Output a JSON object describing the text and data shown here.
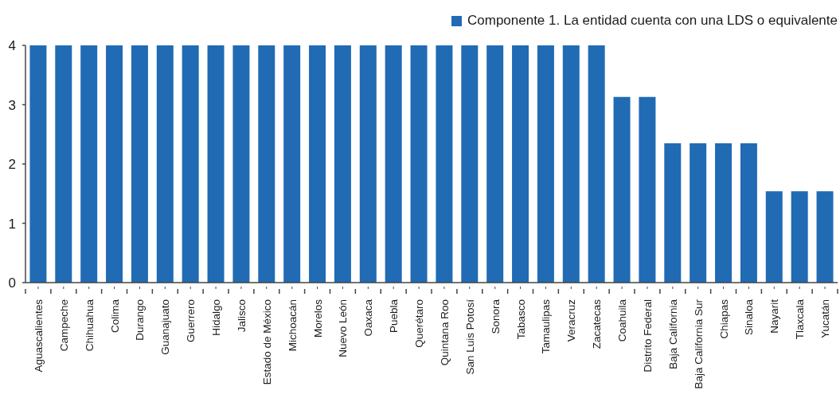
{
  "chart_data": {
    "type": "bar",
    "categories": [
      "Aguascalientes",
      "Campeche",
      "Chihuahua",
      "Colima",
      "Durango",
      "Guanajuato",
      "Guerrero",
      "Hidalgo",
      "Jalisco",
      "Estado de México",
      "Michoacán",
      "Morelos",
      "Nuevo León",
      "Oaxaca",
      "Puebla",
      "Querétaro",
      "Quintana Roo",
      "San Luis Potosí",
      "Sonora",
      "Tabasco",
      "Tamaulipas",
      "Veracruz",
      "Zacatecas",
      "Coahuila",
      "Distrito Federal",
      "Baja California",
      "Baja California Sur",
      "Chiapas",
      "Sinaloa",
      "Nayarit",
      "Tlaxcala",
      "Yucatán"
    ],
    "series": [
      {
        "name": "Componente 1. La entidad cuenta con una LDS o equivalente",
        "color": "#206bb4",
        "values": [
          4,
          4,
          4,
          4,
          4,
          4,
          4,
          4,
          4,
          4,
          4,
          4,
          4,
          4,
          4,
          4,
          4,
          4,
          4,
          4,
          4,
          4,
          4,
          3.13,
          3.13,
          2.35,
          2.35,
          2.35,
          2.35,
          1.54,
          1.54,
          1.54
        ]
      }
    ],
    "ylim": [
      0,
      4
    ],
    "yticks": [
      0,
      1,
      2,
      3,
      4
    ],
    "legend": "top right"
  }
}
